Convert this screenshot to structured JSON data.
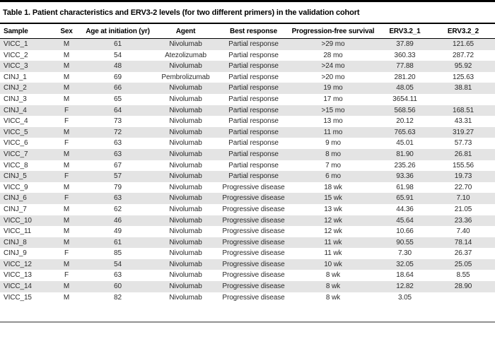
{
  "title": "Table 1. Patient characteristics and ERV3-2 levels (for two different primers) in the validation cohort",
  "colors": {
    "stripe": "#e4e4e4",
    "rule_black": "#000000",
    "rule_gray": "#919191",
    "text": "#2b2b2b"
  },
  "chart_data": {
    "type": "table",
    "title": "Table 1. Patient characteristics and ERV3-2 levels (for two different primers) in the validation cohort",
    "columns": [
      "Sample",
      "Sex",
      "Age at initiation (yr)",
      "Agent",
      "Best response",
      "Progression-free survival",
      "ERV3.2_1",
      "ERV3.2_2"
    ],
    "rows": [
      [
        "VICC_1",
        "M",
        "61",
        "Nivolumab",
        "Partial response",
        ">29 mo",
        "37.89",
        "121.65"
      ],
      [
        "VICC_2",
        "M",
        "54",
        "Atezolizumab",
        "Partial response",
        "28 mo",
        "360.33",
        "287.72"
      ],
      [
        "VICC_3",
        "M",
        "48",
        "Nivolumab",
        "Partial response",
        ">24 mo",
        "77.88",
        "95.92"
      ],
      [
        "CINJ_1",
        "M",
        "69",
        "Pembrolizumab",
        "Partial response",
        ">20 mo",
        "281.20",
        "125.63"
      ],
      [
        "CINJ_2",
        "M",
        "66",
        "Nivolumab",
        "Partial response",
        "19 mo",
        "48.05",
        "38.81"
      ],
      [
        "CINJ_3",
        "M",
        "65",
        "Nivolumab",
        "Partial response",
        "17 mo",
        "3654.11",
        ""
      ],
      [
        "CINJ_4",
        "F",
        "64",
        "Nivolumab",
        "Partial response",
        ">15 mo",
        "568.56",
        "168.51"
      ],
      [
        "VICC_4",
        "F",
        "73",
        "Nivolumab",
        "Partial response",
        "13 mo",
        "20.12",
        "43.31"
      ],
      [
        "VICC_5",
        "M",
        "72",
        "Nivolumab",
        "Partial response",
        "11 mo",
        "765.63",
        "319.27"
      ],
      [
        "VICC_6",
        "F",
        "63",
        "Nivolumab",
        "Partial response",
        "9 mo",
        "45.01",
        "57.73"
      ],
      [
        "VICC_7",
        "M",
        "63",
        "Nivolumab",
        "Partial response",
        "8 mo",
        "81.90",
        "26.81"
      ],
      [
        "VICC_8",
        "M",
        "67",
        "Nivolumab",
        "Partial response",
        "7 mo",
        "235.26",
        "155.56"
      ],
      [
        "CINJ_5",
        "F",
        "57",
        "Nivolumab",
        "Partial response",
        "6 mo",
        "93.36",
        "19.73"
      ],
      [
        "VICC_9",
        "M",
        "79",
        "Nivolumab",
        "Progressive disease",
        "18 wk",
        "61.98",
        "22.70"
      ],
      [
        "CINJ_6",
        "F",
        "63",
        "Nivolumab",
        "Progressive disease",
        "15 wk",
        "65.91",
        "7.10"
      ],
      [
        "CINJ_7",
        "M",
        "62",
        "Nivolumab",
        "Progressive disease",
        "13 wk",
        "44.36",
        "21.05"
      ],
      [
        "VICC_10",
        "M",
        "46",
        "Nivolumab",
        "Progressive disease",
        "12 wk",
        "45.64",
        "23.36"
      ],
      [
        "VICC_11",
        "M",
        "49",
        "Nivolumab",
        "Progressive disease",
        "12 wk",
        "10.66",
        "7.40"
      ],
      [
        "CINJ_8",
        "M",
        "61",
        "Nivolumab",
        "Progressive disease",
        "11 wk",
        "90.55",
        "78.14"
      ],
      [
        "CINJ_9",
        "F",
        "85",
        "Nivolumab",
        "Progressive disease",
        "11 wk",
        "7.30",
        "26.37"
      ],
      [
        "VICC_12",
        "M",
        "54",
        "Nivolumab",
        "Progressive disease",
        "10 wk",
        "32.05",
        "25.05"
      ],
      [
        "VICC_13",
        "F",
        "63",
        "Nivolumab",
        "Progressive disease",
        "8 wk",
        "18.64",
        "8.55"
      ],
      [
        "VICC_14",
        "M",
        "60",
        "Nivolumab",
        "Progressive disease",
        "8 wk",
        "12.82",
        "28.90"
      ],
      [
        "VICC_15",
        "M",
        "82",
        "Nivolumab",
        "Progressive disease",
        "8 wk",
        "3.05",
        ""
      ]
    ]
  }
}
